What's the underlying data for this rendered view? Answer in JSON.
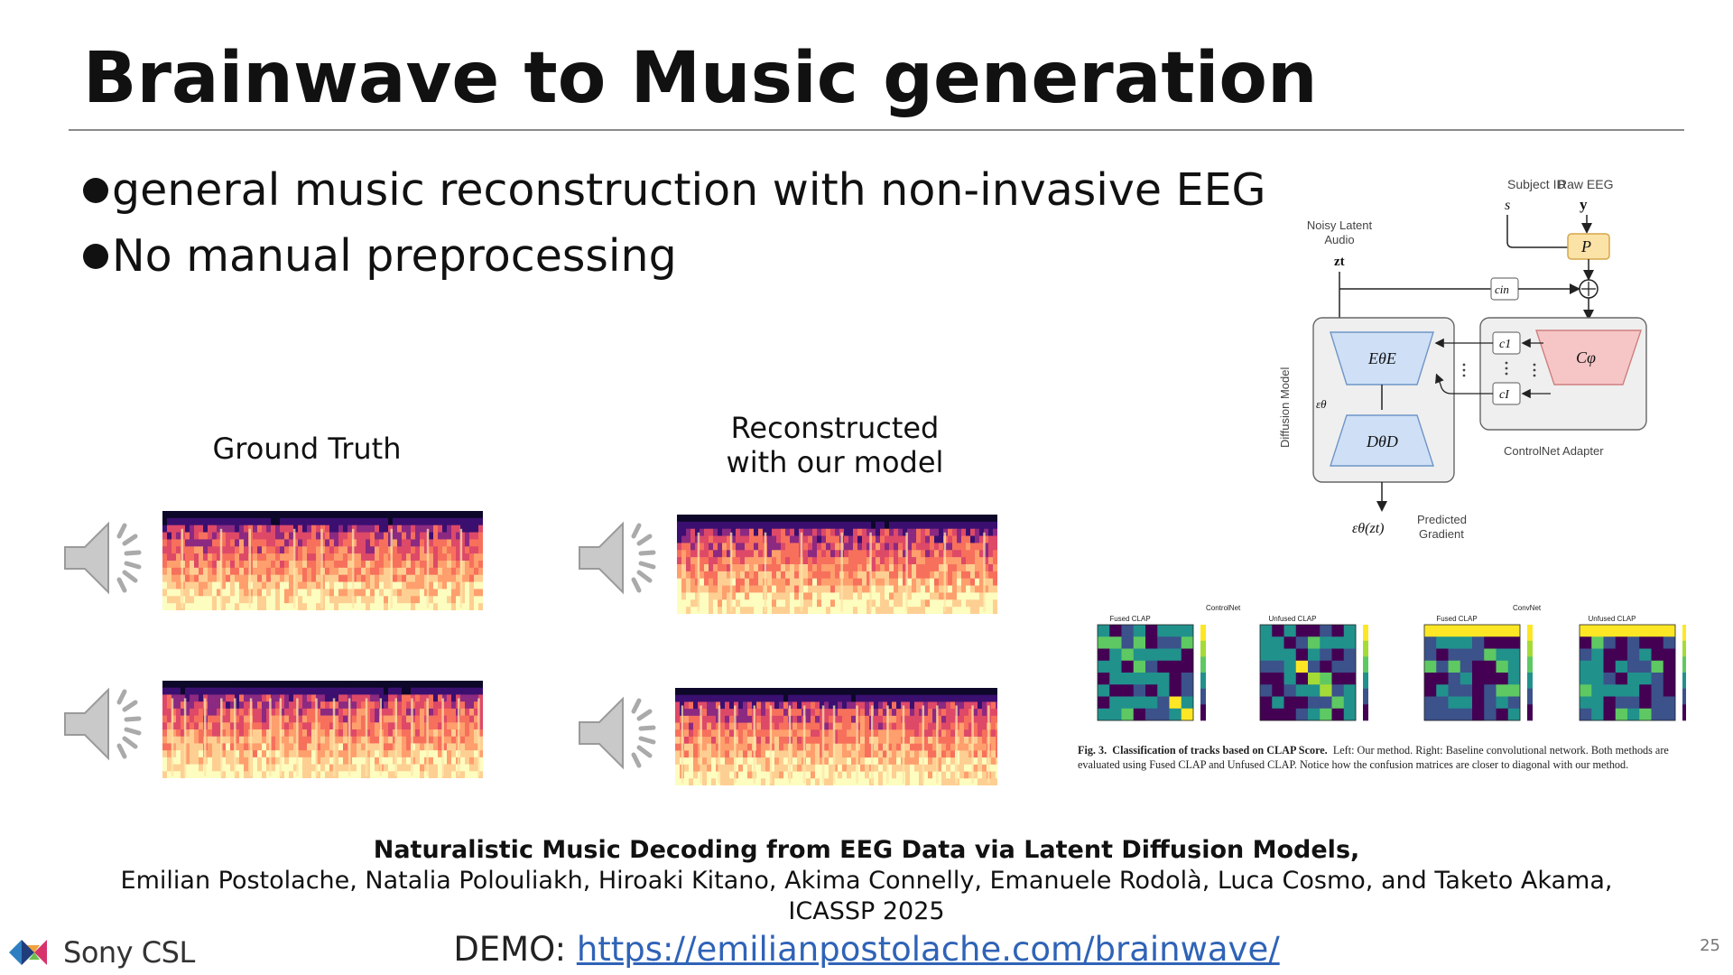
{
  "slide": {
    "title": "Brainwave to Music generation",
    "bullets": [
      "general music reconstruction with non-invasive EEG",
      "No manual preprocessing"
    ],
    "captions": {
      "ground_truth": "Ground Truth",
      "reconstructed_line1": "Reconstructed",
      "reconstructed_line2": "with our model"
    },
    "page_number": "25"
  },
  "diagram": {
    "subject_id_label": "Subject ID",
    "subject_id_symbol": "s",
    "raw_eeg_label": "Raw EEG",
    "raw_eeg_symbol": "y",
    "noisy_latent_line1": "Noisy Latent",
    "noisy_latent_line2": "Audio",
    "zt": "zt",
    "p_block": "P",
    "c_in": "cin",
    "encoder": "EθE",
    "decoder": "DθD",
    "c_phi": "Cφ",
    "c1": "c1",
    "cI": "cI",
    "epsilon_theta": "εθ",
    "diffusion_model_label": "Diffusion Model",
    "controlnet_adapter_label": "ControlNet Adapter",
    "output_expr": "εθ(zt)",
    "predicted_gradient_line1": "Predicted",
    "predicted_gradient_line2": "Gradient"
  },
  "confusion_figure": {
    "group_left": "ControlNet",
    "group_right": "ConvNet",
    "panel_titles": [
      "Fused CLAP",
      "Unfused CLAP",
      "Fused CLAP",
      "Unfused CLAP"
    ],
    "caption_label": "Fig. 3.",
    "caption_bold": "Classification of tracks based on CLAP Score.",
    "caption_text": "Left: Our method. Right: Baseline convolutional network. Both methods are evaluated using Fused CLAP and Unfused CLAP. Notice how the confusion matrices are closer to diagonal with our method."
  },
  "reference": {
    "title": "Naturalistic Music Decoding from EEG Data via Latent Diffusion Models,",
    "authors": "Emilian Postolache, Natalia Polouliakh, Hiroaki Kitano, Akima Connelly, Emanuele Rodolà, Luca Cosmo, and Taketo Akama,",
    "venue": "ICASSP 2025"
  },
  "demo": {
    "label": "DEMO: ",
    "url": "https://emilianpostolache.com/brainwave/"
  },
  "logo": {
    "text": "Sony CSL"
  },
  "icons": [
    "speaker-icon"
  ],
  "colors": {
    "link": "#2f63b7",
    "encoder_fill": "#cfe0f6",
    "cphi_fill": "#f6c6c6",
    "p_fill": "#fbe3a8"
  }
}
